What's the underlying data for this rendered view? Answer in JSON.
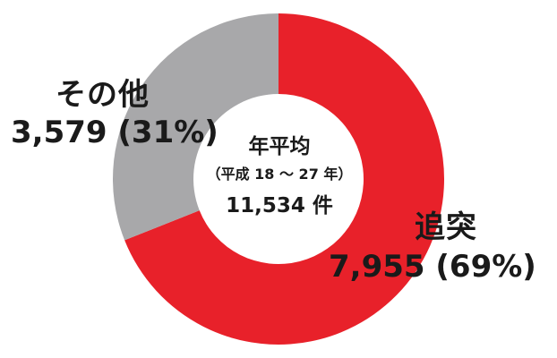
{
  "chart_data": {
    "type": "pie",
    "variant": "donut",
    "categories": [
      "追突",
      "その他"
    ],
    "values": [
      7955,
      3579
    ],
    "percent_labels": [
      "69%",
      "31%"
    ],
    "value_labels": [
      "7,955",
      "3,579"
    ],
    "colors": [
      "#e8212a",
      "#a8a8aa"
    ],
    "center": {
      "title": "年平均",
      "subtitle": "（平成 18 ～ 27 年）",
      "total": "11,534 件"
    }
  },
  "labels": {
    "main_name": "追突",
    "main_value": "7,955 (69%)",
    "other_name": "その他",
    "other_value": "3,579 (31%)"
  }
}
